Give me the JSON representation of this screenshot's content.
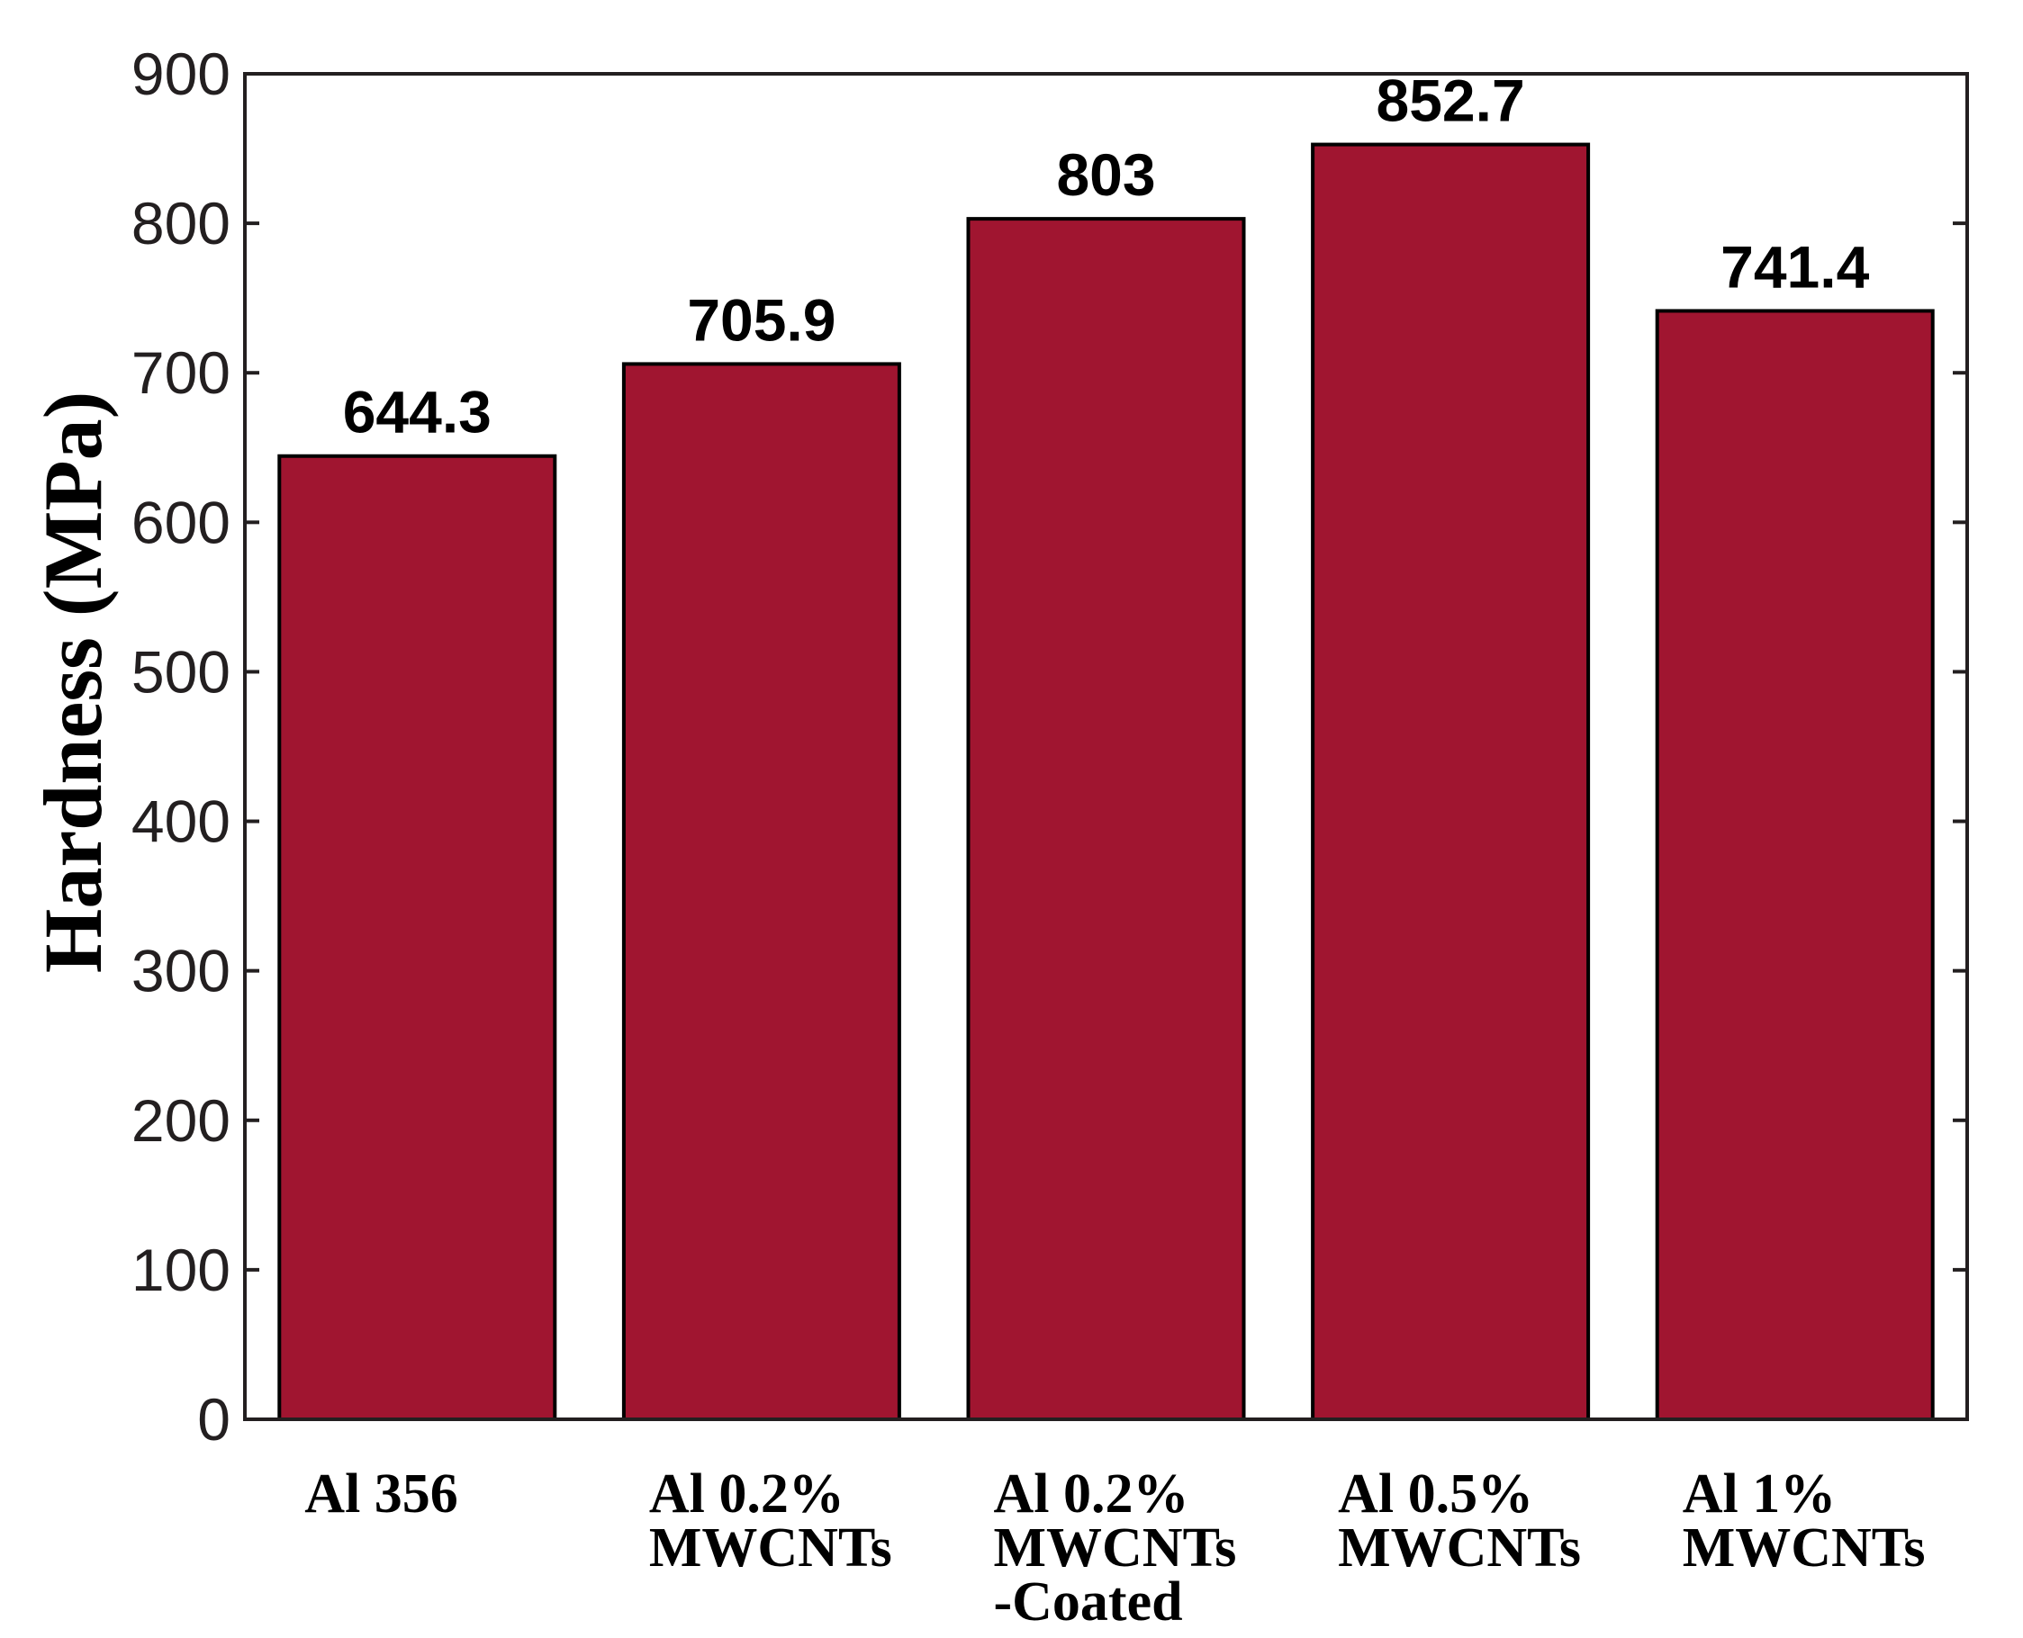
{
  "chart_data": {
    "type": "bar",
    "title": "",
    "xlabel": "",
    "ylabel": "Hardness (MPa)",
    "ylim": [
      0,
      900
    ],
    "yticks": [
      0,
      100,
      200,
      300,
      400,
      500,
      600,
      700,
      800,
      900
    ],
    "categories": [
      [
        "Al 356"
      ],
      [
        "Al 0.2%",
        "MWCNTs"
      ],
      [
        "Al 0.2%",
        "MWCNTs",
        "-Coated"
      ],
      [
        "Al 0.5%",
        "MWCNTs"
      ],
      [
        "Al 1%",
        "MWCNTs"
      ]
    ],
    "values": [
      644.3,
      705.9,
      803,
      852.7,
      741.4
    ],
    "value_labels": [
      "644.3",
      "705.9",
      "803",
      "852.7",
      "741.4"
    ],
    "grid": false,
    "legend": "none",
    "colors": {
      "bar": "#a01530",
      "bar_edge": "#000000",
      "axis": "#231f20"
    }
  }
}
